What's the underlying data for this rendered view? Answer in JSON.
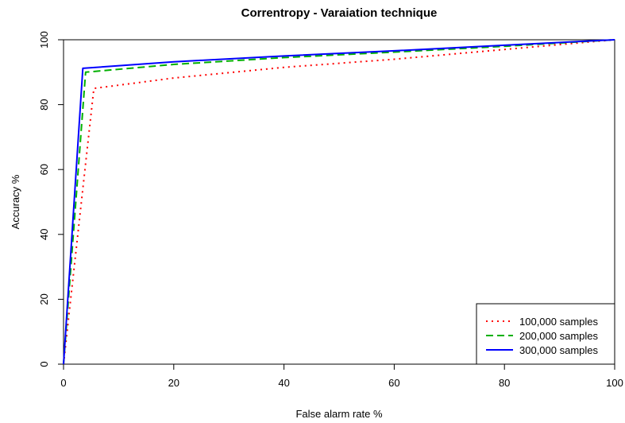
{
  "chart_data": {
    "type": "line",
    "title": "Correntropy - Varaiation technique",
    "xlabel": "False alarm rate %",
    "ylabel": "Accuracy %",
    "xlim": [
      0,
      100
    ],
    "ylim": [
      0,
      100
    ],
    "xticks": [
      0,
      20,
      40,
      60,
      80,
      100
    ],
    "yticks": [
      0,
      20,
      40,
      60,
      80,
      100
    ],
    "grid": false,
    "legend_position": "bottom-right",
    "series": [
      {
        "name": "100,000 samples",
        "color": "#ff0000",
        "dash": "dotted",
        "x": [
          0,
          5.5,
          20,
          40,
          60,
          80,
          100
        ],
        "y": [
          0,
          85,
          88.2,
          91.5,
          94,
          97,
          100
        ]
      },
      {
        "name": "200,000 samples",
        "color": "#00b000",
        "dash": "dashed",
        "x": [
          0,
          4,
          20,
          40,
          60,
          80,
          100
        ],
        "y": [
          0,
          90,
          92.4,
          94.5,
          96.2,
          98,
          100
        ]
      },
      {
        "name": "300,000 samples",
        "color": "#0000ff",
        "dash": "solid",
        "x": [
          0,
          3.5,
          20,
          40,
          60,
          80,
          100
        ],
        "y": [
          0,
          91.2,
          93.2,
          95,
          96.6,
          98.3,
          100
        ]
      }
    ]
  }
}
